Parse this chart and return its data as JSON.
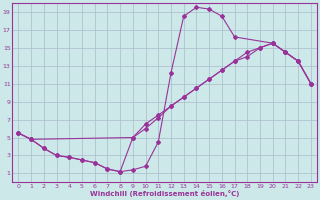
{
  "xlabel": "Windchill (Refroidissement éolien,°C)",
  "bg_color": "#cce8e8",
  "line_color": "#993399",
  "grid_color": "#aabbcc",
  "text_color": "#993399",
  "xlim": [
    -0.5,
    23.5
  ],
  "ylim": [
    0,
    20
  ],
  "xticks": [
    0,
    1,
    2,
    3,
    4,
    5,
    6,
    7,
    8,
    9,
    10,
    11,
    12,
    13,
    14,
    15,
    16,
    17,
    18,
    19,
    20,
    21,
    22,
    23
  ],
  "yticks": [
    1,
    3,
    5,
    7,
    9,
    11,
    13,
    15,
    17,
    19
  ],
  "line1_x": [
    0,
    1,
    2,
    3,
    4,
    5,
    6,
    7,
    8,
    9,
    10,
    11,
    12,
    13,
    14,
    15,
    16,
    17,
    20,
    21,
    22,
    23
  ],
  "line1_y": [
    5.5,
    4.8,
    3.8,
    3.0,
    2.8,
    2.5,
    2.2,
    1.5,
    1.2,
    1.4,
    1.8,
    4.5,
    12.2,
    18.5,
    19.5,
    19.3,
    18.5,
    16.2,
    15.5,
    14.5,
    13.5,
    11.0
  ],
  "line2_x": [
    0,
    1,
    9,
    10,
    11,
    12,
    13,
    14,
    15,
    16,
    17,
    18,
    19,
    20,
    21,
    22,
    23
  ],
  "line2_y": [
    5.5,
    4.8,
    5.0,
    6.0,
    7.2,
    8.5,
    9.5,
    10.5,
    11.5,
    12.5,
    13.5,
    14.5,
    15.0,
    15.5,
    14.5,
    13.5,
    11.0
  ],
  "line3_x": [
    0,
    1,
    2,
    3,
    4,
    5,
    6,
    7,
    8,
    9,
    10,
    11,
    12,
    13,
    14,
    15,
    16,
    17,
    18,
    19,
    20,
    21,
    22,
    23
  ],
  "line3_y": [
    5.5,
    4.8,
    3.8,
    3.0,
    2.8,
    2.5,
    2.2,
    1.5,
    1.2,
    5.0,
    6.5,
    7.5,
    8.5,
    9.5,
    10.5,
    11.5,
    12.5,
    13.5,
    14.0,
    15.0,
    15.5,
    14.5,
    13.5,
    11.0
  ]
}
